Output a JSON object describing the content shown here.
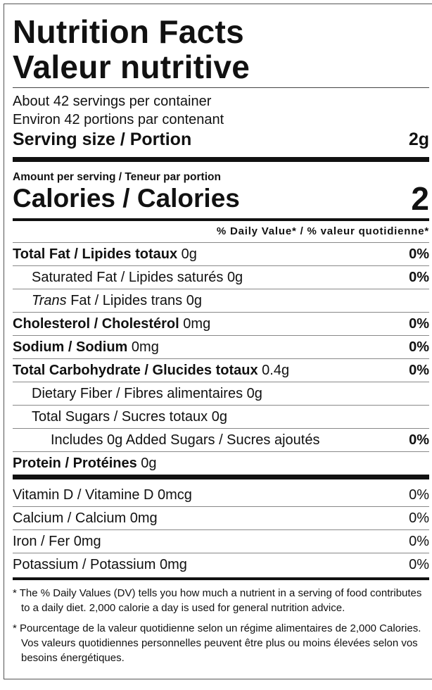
{
  "header": {
    "title": [
      "Nutrition Facts",
      "Valeur nutritive"
    ]
  },
  "servings": [
    "About 42 servings per container",
    "Environ 42 portions par contenant"
  ],
  "serving_size": {
    "label": "Serving size / Portion",
    "value": "2g"
  },
  "amount_per_serving": "Amount per serving / Teneur par portion",
  "calories": {
    "label": "Calories / Calories",
    "value": "2"
  },
  "dv_header": "% Daily Value* / % valeur quotidienne*",
  "nutrients": [
    {
      "label": "Total Fat / Lipides totaux",
      "amount": "0g",
      "dv": "0%"
    },
    {
      "label": "Saturated Fat / Lipides saturés",
      "amount": "0g",
      "dv": "0%"
    },
    {
      "label_italic": "Trans",
      "label": "Fat / Lipides trans",
      "amount": "0g"
    },
    {
      "label": "Cholesterol / Cholestérol",
      "amount": "0mg",
      "dv": "0%"
    },
    {
      "label": "Sodium / Sodium",
      "amount": "0mg",
      "dv": "0%"
    },
    {
      "label": "Total Carbohydrate / Glucides totaux",
      "amount": "0.4g",
      "dv": "0%"
    },
    {
      "label": "Dietary Fiber / Fibres alimentaires",
      "amount": "0g"
    },
    {
      "label": "Total Sugars / Sucres totaux",
      "amount": "0g"
    },
    {
      "label": "Includes 0g Added Sugars / Sucres ajoutés",
      "dv": "0%"
    },
    {
      "label": "Protein / Protéines",
      "amount": "0g"
    }
  ],
  "vitamins": [
    {
      "label": "Vitamin D / Vitamine D 0mcg",
      "dv": "0%"
    },
    {
      "label": "Calcium / Calcium 0mg",
      "dv": "0%"
    },
    {
      "label": "Iron / Fer 0mg",
      "dv": "0%"
    },
    {
      "label": "Potassium / Potassium 0mg",
      "dv": "0%"
    }
  ],
  "footnotes": [
    "* The % Daily Values (DV) tells you how much a nutrient in a serving of food contributes to a daily diet. 2,000 calorie a day is used for general nutrition advice.",
    "* Pourcentage de la valeur quotidienne selon un régime alimentaires de 2,000 Calories. Vos valeurs quotidiennes personnelles peuvent être plus ou moins élevées selon vos besoins énergétiques."
  ]
}
